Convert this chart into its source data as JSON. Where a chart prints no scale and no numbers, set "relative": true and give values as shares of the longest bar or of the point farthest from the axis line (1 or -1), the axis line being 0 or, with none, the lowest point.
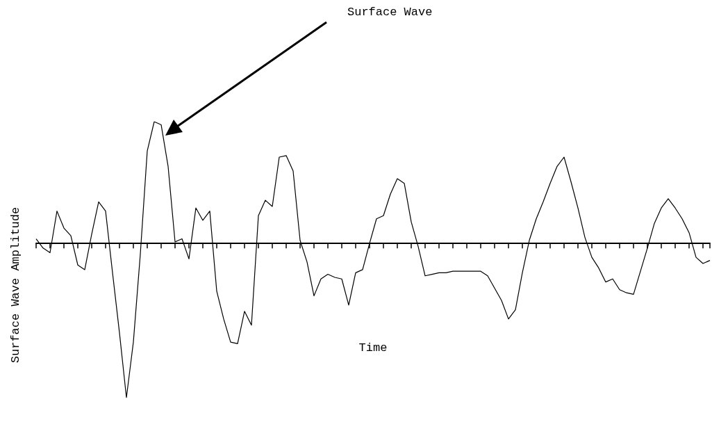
{
  "chart_data": {
    "type": "line",
    "relative": true,
    "xlabel": "Time",
    "ylabel": "Surface Wave Amplitude",
    "annotations": [
      "Surface Wave"
    ],
    "marker": "none",
    "line_style": "solid",
    "grid": false,
    "tick_labels": false,
    "categories": [
      null,
      null,
      null,
      null,
      null,
      null,
      null,
      null,
      null,
      null,
      null,
      null,
      null,
      null,
      null,
      null,
      null,
      null,
      null,
      null,
      null,
      null,
      null,
      null,
      null,
      null,
      null,
      null,
      null,
      null,
      null,
      null,
      null,
      null,
      null,
      null,
      null,
      null,
      null,
      null,
      null,
      null,
      null,
      null,
      null,
      null,
      null,
      null,
      null,
      null,
      null,
      null,
      null,
      null,
      null,
      null,
      null,
      null,
      null,
      null,
      null,
      null,
      null,
      null,
      null,
      null,
      null,
      null,
      null,
      null,
      null,
      null,
      null,
      null,
      null,
      null,
      null,
      null,
      null,
      null,
      null,
      null,
      null,
      null,
      null,
      null,
      null,
      null,
      null,
      null,
      null,
      null,
      null,
      null,
      null,
      null,
      null,
      null
    ],
    "series": [
      {
        "color": "#000000",
        "values": [
          0.03,
          -0.03,
          -0.06,
          0.21,
          0.1,
          0.05,
          -0.14,
          -0.17,
          0.06,
          0.27,
          0.21,
          -0.19,
          -0.58,
          -1,
          -0.64,
          -0.07,
          0.6,
          0.79,
          0.77,
          0.5,
          0.01,
          0.03,
          -0.1,
          0.23,
          0.15,
          0.21,
          -0.31,
          -0.49,
          -0.64,
          -0.65,
          -0.44,
          -0.53,
          0.18,
          0.28,
          0.24,
          0.56,
          0.57,
          0.47,
          0.02,
          -0.12,
          -0.34,
          -0.23,
          -0.2,
          -0.22,
          -0.23,
          -0.4,
          -0.19,
          -0.17,
          0.0,
          0.16,
          0.18,
          0.32,
          0.42,
          0.39,
          0.14,
          -0.02,
          -0.21,
          -0.2,
          -0.19,
          -0.19,
          -0.18,
          -0.18,
          -0.18,
          -0.18,
          -0.18,
          -0.21,
          -0.29,
          -0.37,
          -0.49,
          -0.43,
          -0.19,
          0.02,
          0.16,
          0.27,
          0.39,
          0.5,
          0.56,
          0.4,
          0.23,
          0.04,
          -0.09,
          -0.16,
          -0.25,
          -0.23,
          -0.3,
          -0.32,
          -0.33,
          -0.18,
          -0.03,
          0.13,
          0.23,
          0.29,
          0.23,
          0.16,
          0.07,
          -0.09,
          -0.13,
          -0.11
        ]
      }
    ]
  }
}
